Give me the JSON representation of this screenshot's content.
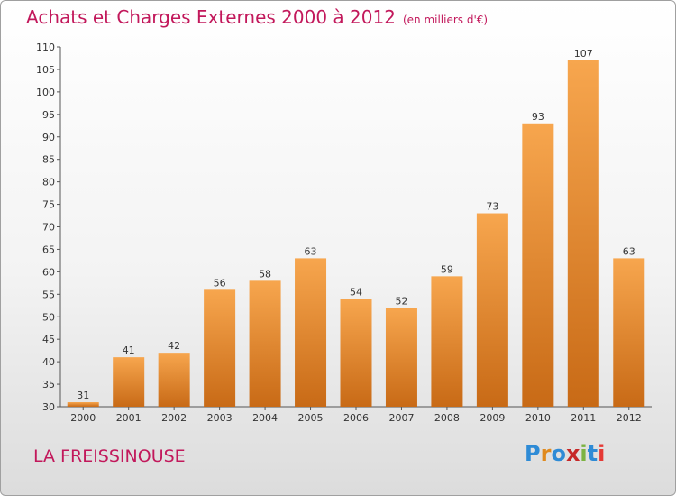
{
  "header": {
    "title": "Achats et Charges Externes 2000 à 2012",
    "unit": "(en milliers d'€)"
  },
  "footer": {
    "commune": "LA FREISSINOUSE",
    "brand": "Proxiti"
  },
  "colors": {
    "bar_light": "#f7a64e",
    "bar_dark": "#c86a16",
    "title": "#c2185b",
    "brand": [
      "#2e8bd6",
      "#e08a1e",
      "#2e8bd6",
      "#c62828",
      "#7cb342",
      "#2e8bd6",
      "#e53935"
    ]
  },
  "chart_data": {
    "type": "bar",
    "title": "Achats et Charges Externes 2000 à 2012",
    "subtitle": "(en milliers d'€)",
    "categories": [
      "2000",
      "2001",
      "2002",
      "2003",
      "2004",
      "2005",
      "2006",
      "2007",
      "2008",
      "2009",
      "2010",
      "2011",
      "2012"
    ],
    "values": [
      31,
      41,
      42,
      56,
      58,
      63,
      54,
      52,
      59,
      73,
      93,
      107,
      63
    ],
    "ylim": [
      30,
      110
    ],
    "yticks": [
      30,
      35,
      40,
      45,
      50,
      55,
      60,
      65,
      70,
      75,
      80,
      85,
      90,
      95,
      100,
      105,
      110
    ],
    "grid": false,
    "data_labels": true
  }
}
